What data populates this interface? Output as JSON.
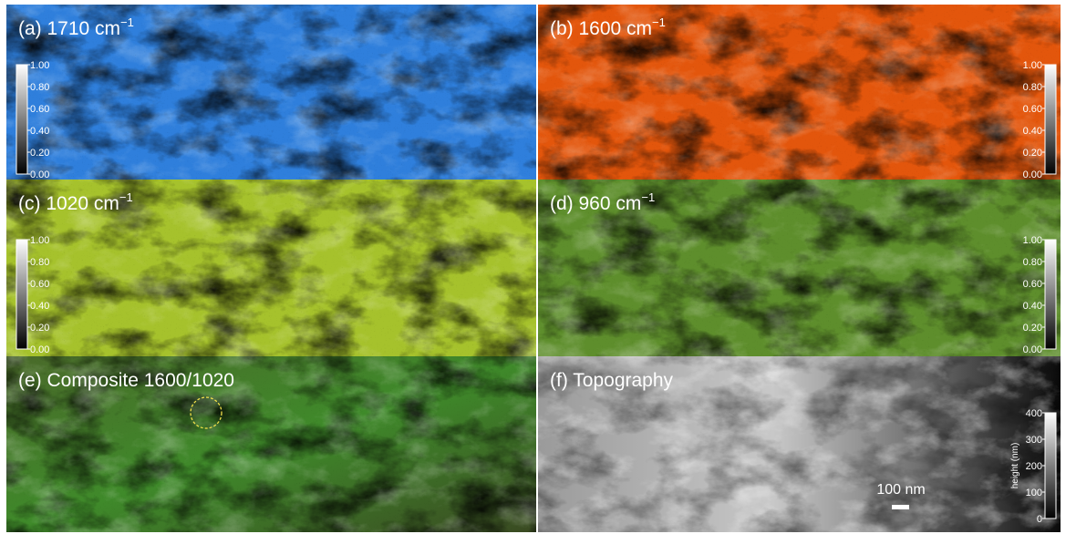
{
  "panels": [
    {
      "label": "(a) 1710 cm",
      "superscript": "−1",
      "colorbar": {
        "ticks": [
          "1.00",
          "0.80",
          "0.60",
          "0.40",
          "0.20",
          "0.00"
        ]
      }
    },
    {
      "label": "(b) 1600 cm",
      "superscript": "−1",
      "colorbar": {
        "ticks": [
          "1.00",
          "0.80",
          "0.60",
          "0.40",
          "0.20",
          "0.00"
        ]
      }
    },
    {
      "label": "(c) 1020 cm",
      "superscript": "−1",
      "colorbar": {
        "ticks": [
          "1.00",
          "0.80",
          "0.60",
          "0.40",
          "0.20",
          "0.00"
        ]
      }
    },
    {
      "label": "(d) 960 cm",
      "superscript": "−1",
      "colorbar": {
        "ticks": [
          "1.00",
          "0.80",
          "0.60",
          "0.40",
          "0.20",
          "0.00"
        ]
      }
    },
    {
      "label": "(e) Composite 1600/1020"
    },
    {
      "label": "(f) Topography",
      "colorbar": {
        "ticks": [
          "400",
          "300",
          "200",
          "100",
          "0"
        ],
        "title": "height (nm)"
      },
      "scale_bar": "100 nm"
    }
  ]
}
